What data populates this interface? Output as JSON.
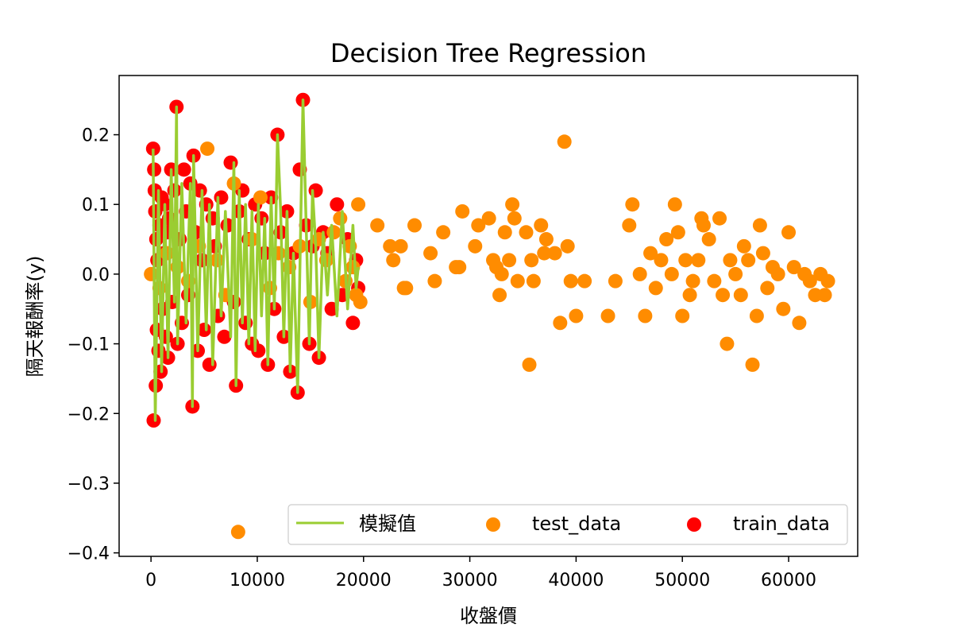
{
  "chart_data": {
    "type": "scatter",
    "title": "Decision Tree Regression",
    "xlabel": "收盤價",
    "ylabel": "隔天報酬率(y)",
    "xlim": [
      -3000,
      66500
    ],
    "ylim": [
      -0.405,
      0.285
    ],
    "xticks": [
      0,
      10000,
      20000,
      30000,
      40000,
      50000,
      60000
    ],
    "yticks": [
      -0.4,
      -0.3,
      -0.2,
      -0.1,
      0.0,
      0.1,
      0.2
    ],
    "ytick_labels": [
      "−0.4",
      "−0.3",
      "−0.2",
      "−0.1",
      "0.0",
      "0.1",
      "0.2"
    ],
    "grid": false,
    "legend_position": "lower-right",
    "legend": [
      "模擬值",
      "test_data",
      "train_data"
    ],
    "colors": {
      "model": "#9ACD32",
      "test": "#FF8C00",
      "train": "#FF0000"
    },
    "series": [
      {
        "name": "train_data",
        "kind": "scatter",
        "points": [
          [
            200,
            0.18
          ],
          [
            250,
            -0.21
          ],
          [
            300,
            0.15
          ],
          [
            350,
            0.12
          ],
          [
            400,
            0.09
          ],
          [
            450,
            -0.16
          ],
          [
            500,
            0.05
          ],
          [
            550,
            -0.08
          ],
          [
            600,
            0.02
          ],
          [
            700,
            -0.11
          ],
          [
            800,
            0.07
          ],
          [
            900,
            -0.14
          ],
          [
            1000,
            0.11
          ],
          [
            1100,
            -0.05
          ],
          [
            1200,
            0.03
          ],
          [
            1300,
            0.1
          ],
          [
            1400,
            -0.09
          ],
          [
            1500,
            0.06
          ],
          [
            1600,
            -0.12
          ],
          [
            1700,
            0.08
          ],
          [
            1900,
            0.15
          ],
          [
            2000,
            -0.04
          ],
          [
            2200,
            0.12
          ],
          [
            2400,
            0.24
          ],
          [
            2500,
            -0.1
          ],
          [
            2700,
            0.05
          ],
          [
            2900,
            -0.07
          ],
          [
            3100,
            0.15
          ],
          [
            3300,
            0.09
          ],
          [
            3500,
            -0.03
          ],
          [
            3700,
            0.13
          ],
          [
            3900,
            -0.19
          ],
          [
            4000,
            0.17
          ],
          [
            4200,
            0.06
          ],
          [
            4400,
            -0.11
          ],
          [
            4600,
            0.12
          ],
          [
            4800,
            0.02
          ],
          [
            5000,
            -0.08
          ],
          [
            5200,
            0.1
          ],
          [
            5500,
            -0.13
          ],
          [
            5800,
            0.08
          ],
          [
            6000,
            0.04
          ],
          [
            6300,
            -0.06
          ],
          [
            6600,
            0.11
          ],
          [
            6900,
            -0.09
          ],
          [
            7200,
            0.07
          ],
          [
            7500,
            0.16
          ],
          [
            7800,
            -0.04
          ],
          [
            8000,
            -0.16
          ],
          [
            8300,
            0.09
          ],
          [
            8600,
            0.12
          ],
          [
            8900,
            -0.07
          ],
          [
            9200,
            0.05
          ],
          [
            9500,
            -0.1
          ],
          [
            9800,
            0.1
          ],
          [
            10100,
            -0.11
          ],
          [
            10400,
            0.08
          ],
          [
            10700,
            0.03
          ],
          [
            11000,
            -0.13
          ],
          [
            11300,
            0.11
          ],
          [
            11600,
            -0.05
          ],
          [
            11900,
            0.2
          ],
          [
            12200,
            0.06
          ],
          [
            12500,
            -0.09
          ],
          [
            12800,
            0.09
          ],
          [
            13100,
            -0.14
          ],
          [
            13400,
            0.03
          ],
          [
            13800,
            -0.17
          ],
          [
            14000,
            0.15
          ],
          [
            14300,
            0.25
          ],
          [
            14600,
            0.07
          ],
          [
            14900,
            -0.1
          ],
          [
            15200,
            0.04
          ],
          [
            15500,
            0.12
          ],
          [
            15800,
            -0.12
          ],
          [
            16200,
            0.06
          ],
          [
            16600,
            0.03
          ],
          [
            17000,
            -0.05
          ],
          [
            17500,
            0.1
          ],
          [
            18000,
            -0.03
          ],
          [
            18500,
            0.05
          ],
          [
            19000,
            -0.07
          ],
          [
            19300,
            0.02
          ],
          [
            19500,
            -0.02
          ]
        ]
      },
      {
        "name": "test_data",
        "kind": "scatter",
        "points": [
          [
            0,
            0.0
          ],
          [
            800,
            -0.02
          ],
          [
            1500,
            0.03
          ],
          [
            2500,
            0.01
          ],
          [
            3500,
            -0.01
          ],
          [
            4500,
            0.04
          ],
          [
            5300,
            0.18
          ],
          [
            6200,
            0.02
          ],
          [
            7000,
            -0.03
          ],
          [
            7800,
            0.13
          ],
          [
            8200,
            -0.37
          ],
          [
            9500,
            0.05
          ],
          [
            10300,
            0.11
          ],
          [
            11200,
            -0.02
          ],
          [
            12000,
            0.03
          ],
          [
            13000,
            0.01
          ],
          [
            14000,
            0.04
          ],
          [
            15000,
            -0.04
          ],
          [
            15800,
            0.05
          ],
          [
            16500,
            0.02
          ],
          [
            17200,
            0.06
          ],
          [
            17800,
            0.08
          ],
          [
            18300,
            -0.01
          ],
          [
            18700,
            0.04
          ],
          [
            19000,
            0.01
          ],
          [
            19300,
            -0.03
          ],
          [
            19500,
            0.1
          ],
          [
            19700,
            -0.04
          ],
          [
            21300,
            0.07
          ],
          [
            22500,
            0.04
          ],
          [
            22800,
            0.02
          ],
          [
            23500,
            0.04
          ],
          [
            23800,
            -0.02
          ],
          [
            24000,
            -0.02
          ],
          [
            24800,
            0.07
          ],
          [
            26300,
            0.03
          ],
          [
            26700,
            -0.01
          ],
          [
            27500,
            0.06
          ],
          [
            28700,
            0.01
          ],
          [
            29000,
            0.01
          ],
          [
            29300,
            0.09
          ],
          [
            30500,
            0.04
          ],
          [
            30800,
            0.07
          ],
          [
            31800,
            0.08
          ],
          [
            32200,
            0.02
          ],
          [
            32500,
            0.01
          ],
          [
            32800,
            -0.03
          ],
          [
            33000,
            0.0
          ],
          [
            33300,
            0.06
          ],
          [
            33700,
            0.02
          ],
          [
            34000,
            0.1
          ],
          [
            34200,
            0.08
          ],
          [
            34500,
            -0.01
          ],
          [
            35300,
            0.06
          ],
          [
            35600,
            -0.13
          ],
          [
            35800,
            0.02
          ],
          [
            36000,
            -0.01
          ],
          [
            36700,
            0.07
          ],
          [
            37000,
            0.03
          ],
          [
            37200,
            0.05
          ],
          [
            38000,
            0.03
          ],
          [
            38500,
            -0.07
          ],
          [
            38900,
            0.19
          ],
          [
            39200,
            0.04
          ],
          [
            39500,
            -0.01
          ],
          [
            40000,
            -0.06
          ],
          [
            40800,
            -0.01
          ],
          [
            43000,
            -0.06
          ],
          [
            43700,
            -0.01
          ],
          [
            45000,
            0.07
          ],
          [
            45300,
            0.1
          ],
          [
            46000,
            0.0
          ],
          [
            46500,
            -0.06
          ],
          [
            47000,
            0.03
          ],
          [
            47500,
            -0.02
          ],
          [
            48000,
            0.02
          ],
          [
            48500,
            0.05
          ],
          [
            49000,
            0.0
          ],
          [
            49300,
            0.1
          ],
          [
            49600,
            0.06
          ],
          [
            50000,
            -0.06
          ],
          [
            50300,
            0.02
          ],
          [
            50700,
            -0.03
          ],
          [
            51000,
            -0.01
          ],
          [
            51500,
            0.02
          ],
          [
            51800,
            0.08
          ],
          [
            52000,
            0.07
          ],
          [
            52500,
            0.05
          ],
          [
            53000,
            -0.01
          ],
          [
            53500,
            0.08
          ],
          [
            53800,
            -0.03
          ],
          [
            54200,
            -0.1
          ],
          [
            54500,
            0.02
          ],
          [
            55000,
            0.0
          ],
          [
            55500,
            -0.03
          ],
          [
            55800,
            0.04
          ],
          [
            56200,
            0.02
          ],
          [
            56600,
            -0.13
          ],
          [
            57000,
            -0.06
          ],
          [
            57300,
            0.07
          ],
          [
            57600,
            0.03
          ],
          [
            58000,
            -0.02
          ],
          [
            58500,
            0.01
          ],
          [
            59000,
            0.0
          ],
          [
            59500,
            -0.05
          ],
          [
            60000,
            0.06
          ],
          [
            60500,
            0.01
          ],
          [
            61000,
            -0.07
          ],
          [
            61500,
            0.0
          ],
          [
            62000,
            -0.01
          ],
          [
            62500,
            -0.03
          ],
          [
            63000,
            0.0
          ],
          [
            63400,
            -0.03
          ],
          [
            63700,
            -0.01
          ]
        ]
      },
      {
        "name": "模擬值",
        "kind": "line",
        "points": [
          [
            200,
            0.18
          ],
          [
            400,
            -0.21
          ],
          [
            700,
            0.12
          ],
          [
            1000,
            -0.14
          ],
          [
            1300,
            0.1
          ],
          [
            1600,
            -0.12
          ],
          [
            1900,
            0.15
          ],
          [
            2200,
            -0.04
          ],
          [
            2400,
            0.24
          ],
          [
            2500,
            -0.1
          ],
          [
            2900,
            0.13
          ],
          [
            3300,
            -0.07
          ],
          [
            3700,
            0.13
          ],
          [
            3900,
            -0.19
          ],
          [
            4000,
            0.17
          ],
          [
            4400,
            -0.11
          ],
          [
            4800,
            0.12
          ],
          [
            5200,
            -0.08
          ],
          [
            5500,
            0.1
          ],
          [
            5800,
            -0.13
          ],
          [
            6300,
            0.11
          ],
          [
            6600,
            -0.06
          ],
          [
            7000,
            0.09
          ],
          [
            7500,
            -0.09
          ],
          [
            7800,
            0.16
          ],
          [
            8000,
            -0.16
          ],
          [
            8300,
            0.12
          ],
          [
            8600,
            -0.07
          ],
          [
            8900,
            0.1
          ],
          [
            9200,
            -0.1
          ],
          [
            9500,
            0.09
          ],
          [
            9800,
            -0.11
          ],
          [
            10100,
            0.1
          ],
          [
            10400,
            -0.06
          ],
          [
            10700,
            0.08
          ],
          [
            11000,
            -0.13
          ],
          [
            11300,
            0.11
          ],
          [
            11600,
            -0.05
          ],
          [
            11900,
            0.2
          ],
          [
            12200,
            0.09
          ],
          [
            12500,
            -0.09
          ],
          [
            12800,
            0.09
          ],
          [
            13100,
            -0.14
          ],
          [
            13400,
            0.03
          ],
          [
            13800,
            -0.17
          ],
          [
            14300,
            0.25
          ],
          [
            14600,
            0.07
          ],
          [
            14900,
            -0.1
          ],
          [
            15200,
            0.12
          ],
          [
            15500,
            0.04
          ],
          [
            15800,
            -0.12
          ],
          [
            16200,
            0.06
          ],
          [
            16600,
            -0.03
          ],
          [
            17000,
            0.07
          ],
          [
            17500,
            -0.06
          ],
          [
            18000,
            0.09
          ],
          [
            18500,
            -0.05
          ],
          [
            19000,
            0.07
          ],
          [
            19300,
            -0.02
          ],
          [
            19500,
            0.01
          ]
        ]
      }
    ]
  }
}
